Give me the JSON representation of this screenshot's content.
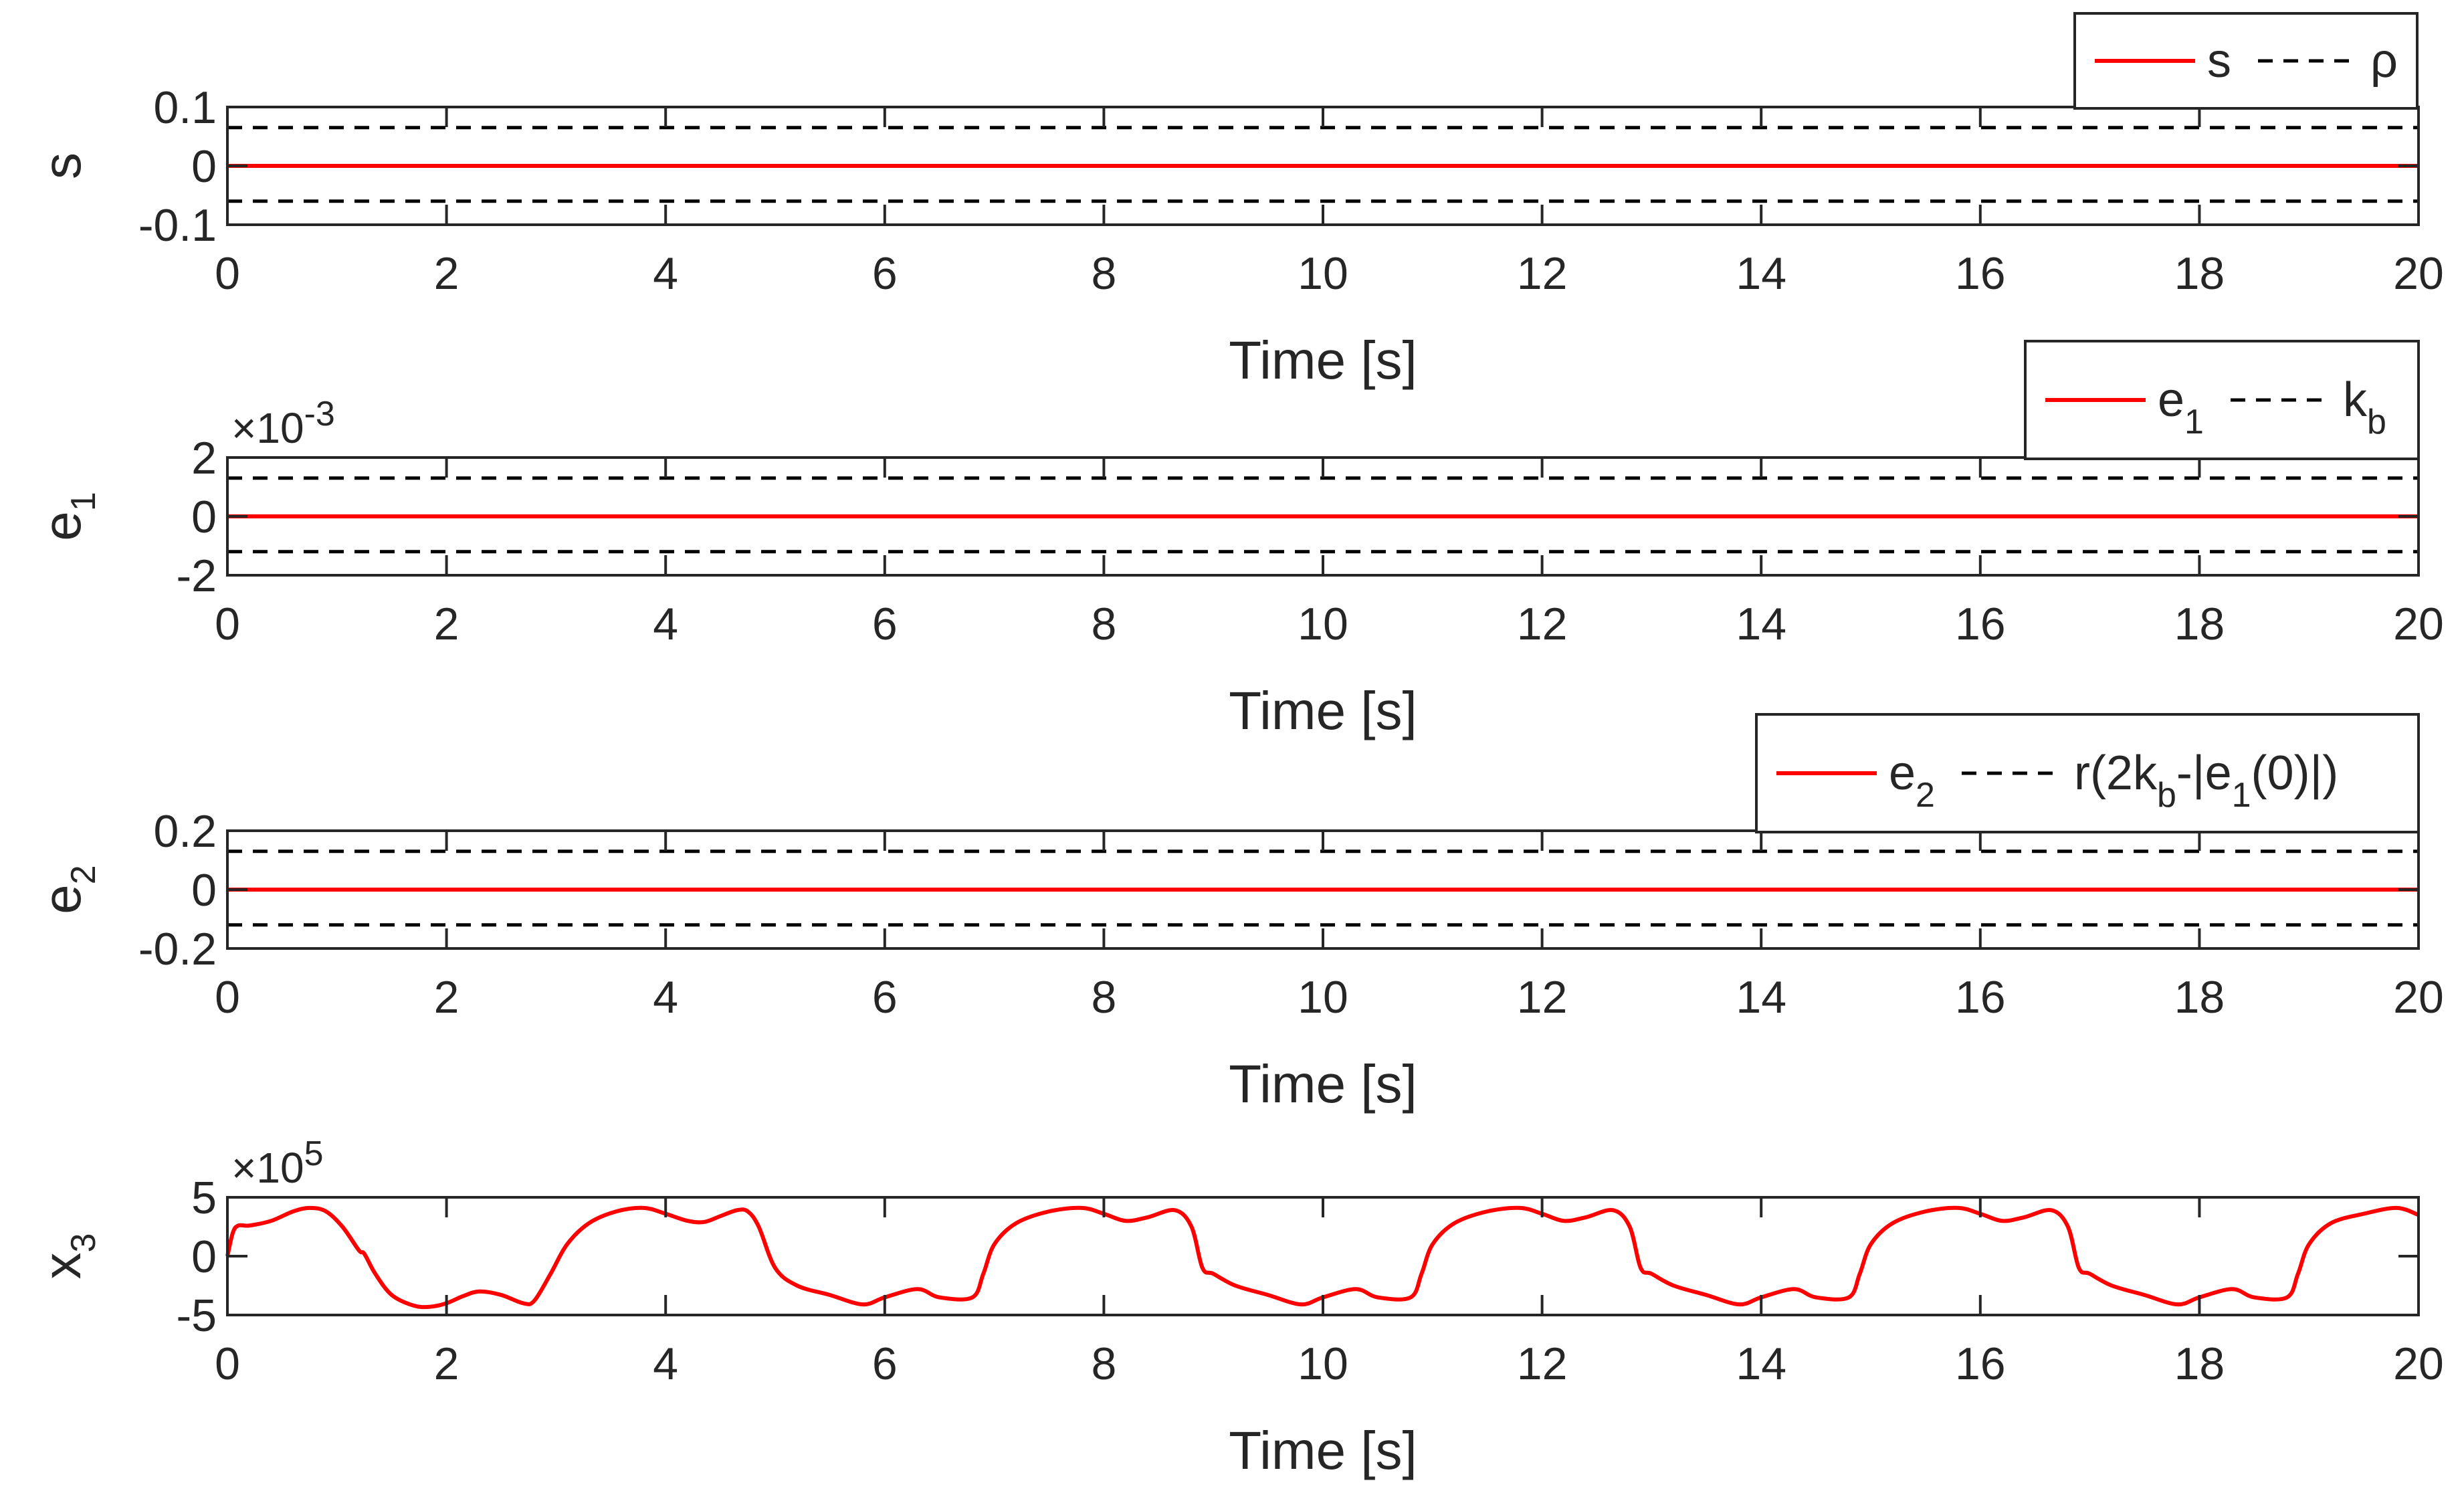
{
  "chart_data": [
    {
      "type": "line",
      "ylabel": "s",
      "ylabel_sub": "",
      "xlabel": "Time [s]",
      "xlim": [
        0,
        20
      ],
      "ylim": [
        -0.1,
        0.1
      ],
      "xticks": [
        "0",
        "2",
        "4",
        "6",
        "8",
        "10",
        "12",
        "14",
        "16",
        "18",
        "20"
      ],
      "yticks": [
        "-0.1",
        "0",
        "0.1"
      ],
      "ytick_values": [
        -0.1,
        0,
        0.1
      ],
      "exponent_label": "",
      "grid": false,
      "legend_position": "top-right",
      "legend": [
        {
          "parts": [
            {
              "t": "s"
            }
          ],
          "style": "solid",
          "color": "#ff0000"
        },
        {
          "parts": [
            {
              "t": "ρ"
            }
          ],
          "style": "dashed",
          "color": "#000000"
        }
      ],
      "series": [
        {
          "name": "s",
          "style": "solid",
          "color": "#ff0000",
          "kind": "flat",
          "value": 0
        },
        {
          "name": "ρ upper",
          "style": "dashed",
          "color": "#000000",
          "kind": "flat",
          "value": 0.065
        },
        {
          "name": "ρ lower",
          "style": "dashed",
          "color": "#000000",
          "kind": "flat",
          "value": -0.06
        }
      ]
    },
    {
      "type": "line",
      "ylabel": "e",
      "ylabel_sub": "1",
      "xlabel": "Time [s]",
      "xlim": [
        0,
        20
      ],
      "ylim": [
        -2,
        2
      ],
      "xticks": [
        "0",
        "2",
        "4",
        "6",
        "8",
        "10",
        "12",
        "14",
        "16",
        "18",
        "20"
      ],
      "yticks": [
        "-2",
        "0",
        "2"
      ],
      "ytick_values": [
        -2,
        0,
        2
      ],
      "exponent_label": "×10",
      "exponent_power": "-3",
      "grid": false,
      "legend_position": "top-right",
      "legend": [
        {
          "parts": [
            {
              "t": "e"
            },
            {
              "sub": "1"
            }
          ],
          "style": "solid",
          "color": "#ff0000"
        },
        {
          "parts": [
            {
              "t": "k"
            },
            {
              "sub": "b"
            }
          ],
          "style": "dashed",
          "color": "#000000"
        }
      ],
      "series": [
        {
          "name": "e1",
          "style": "solid",
          "color": "#ff0000",
          "kind": "flat",
          "value": 0
        },
        {
          "name": "kb upper",
          "style": "dashed",
          "color": "#000000",
          "kind": "flat",
          "value": 1.3
        },
        {
          "name": "kb lower",
          "style": "dashed",
          "color": "#000000",
          "kind": "flat",
          "value": -1.2
        }
      ]
    },
    {
      "type": "line",
      "ylabel": "e",
      "ylabel_sub": "2",
      "xlabel": "Time [s]",
      "xlim": [
        0,
        20
      ],
      "ylim": [
        -0.2,
        0.2
      ],
      "xticks": [
        "0",
        "2",
        "4",
        "6",
        "8",
        "10",
        "12",
        "14",
        "16",
        "18",
        "20"
      ],
      "yticks": [
        "-0.2",
        "0",
        "0.2"
      ],
      "ytick_values": [
        -0.2,
        0,
        0.2
      ],
      "exponent_label": "",
      "grid": false,
      "legend_position": "top-right",
      "legend": [
        {
          "parts": [
            {
              "t": "e"
            },
            {
              "sub": "2"
            }
          ],
          "style": "solid",
          "color": "#ff0000"
        },
        {
          "parts": [
            {
              "t": "r(2k"
            },
            {
              "sub": "b"
            },
            {
              "t": "-|e"
            },
            {
              "sub": "1"
            },
            {
              "t": "(0)|)"
            }
          ],
          "style": "dashed",
          "color": "#000000"
        }
      ],
      "series": [
        {
          "name": "e2",
          "style": "solid",
          "color": "#ff0000",
          "kind": "flat",
          "value": 0
        },
        {
          "name": "bound upper",
          "style": "dashed",
          "color": "#000000",
          "kind": "flat",
          "value": 0.13
        },
        {
          "name": "bound lower",
          "style": "dashed",
          "color": "#000000",
          "kind": "flat",
          "value": -0.12
        }
      ]
    },
    {
      "type": "line",
      "ylabel": "x",
      "ylabel_sub": "3",
      "xlabel": "Time [s]",
      "xlim": [
        0,
        20
      ],
      "ylim": [
        -5,
        5
      ],
      "xticks": [
        "0",
        "2",
        "4",
        "6",
        "8",
        "10",
        "12",
        "14",
        "16",
        "18",
        "20"
      ],
      "yticks": [
        "-5",
        "0",
        "5"
      ],
      "ytick_values": [
        -5,
        0,
        5
      ],
      "exponent_label": "×10",
      "exponent_power": "5",
      "grid": false,
      "legend": [],
      "series": [
        {
          "name": "x3",
          "style": "solid",
          "color": "#ff0000",
          "kind": "points",
          "x": [
            0,
            0.05,
            0.1,
            0.2,
            0.4,
            0.6,
            0.75,
            0.9,
            1.05,
            1.2,
            1.25,
            1.35,
            1.5,
            1.7,
            1.85,
            2.0,
            2.15,
            2.3,
            2.5,
            2.7,
            2.8,
            2.95,
            3.1,
            3.3,
            3.55,
            3.8,
            4.0,
            4.2,
            4.35,
            4.5,
            4.65,
            4.75,
            4.85,
            5.0,
            5.2,
            5.5,
            5.8,
            6.0,
            6.3,
            6.5,
            6.8,
            6.9,
            7.0,
            7.2,
            7.5,
            7.8,
            8.0,
            8.2,
            8.4,
            8.65,
            8.8,
            8.9,
            9.0,
            9.2,
            9.5,
            9.8,
            10.0,
            10.3,
            10.5,
            10.8,
            10.9,
            11.0,
            11.2,
            11.5,
            11.8,
            12.0,
            12.2,
            12.4,
            12.65,
            12.8,
            12.9,
            13.0,
            13.2,
            13.5,
            13.8,
            14.0,
            14.3,
            14.5,
            14.8,
            14.9,
            15.0,
            15.2,
            15.5,
            15.8,
            16.0,
            16.2,
            16.4,
            16.65,
            16.8,
            16.9,
            17.0,
            17.2,
            17.5,
            17.8,
            18.0,
            18.3,
            18.5,
            18.8,
            18.9,
            19.0,
            19.2,
            19.5,
            19.8,
            20.0
          ],
          "y": [
            0,
            2.0,
            2.6,
            2.6,
            3.0,
            3.8,
            4.1,
            3.8,
            2.5,
            0.5,
            0.2,
            -1.5,
            -3.3,
            -4.2,
            -4.3,
            -4.0,
            -3.4,
            -3.0,
            -3.3,
            -4.0,
            -3.8,
            -1.5,
            1.0,
            2.8,
            3.8,
            4.1,
            3.6,
            3.0,
            2.9,
            3.4,
            3.9,
            3.8,
            2.5,
            -1.0,
            -2.5,
            -3.3,
            -4.1,
            -3.5,
            -2.8,
            -3.5,
            -3.5,
            -1.5,
            1.0,
            2.8,
            3.8,
            4.1,
            3.6,
            3.0,
            3.3,
            3.9,
            2.5,
            -1.0,
            -1.5,
            -2.5,
            -3.3,
            -4.1,
            -3.5,
            -2.8,
            -3.5,
            -3.5,
            -1.5,
            1.0,
            2.8,
            3.8,
            4.1,
            3.6,
            3.0,
            3.3,
            3.9,
            2.5,
            -1.0,
            -1.5,
            -2.5,
            -3.3,
            -4.1,
            -3.5,
            -2.8,
            -3.5,
            -3.5,
            -1.5,
            1.0,
            2.8,
            3.8,
            4.1,
            3.6,
            3.0,
            3.3,
            3.9,
            2.5,
            -1.0,
            -1.5,
            -2.5,
            -3.3,
            -4.1,
            -3.5,
            -2.8,
            -3.5,
            -3.5,
            -1.5,
            1.0,
            2.8,
            3.6,
            4.1,
            3.5
          ]
        }
      ]
    }
  ]
}
